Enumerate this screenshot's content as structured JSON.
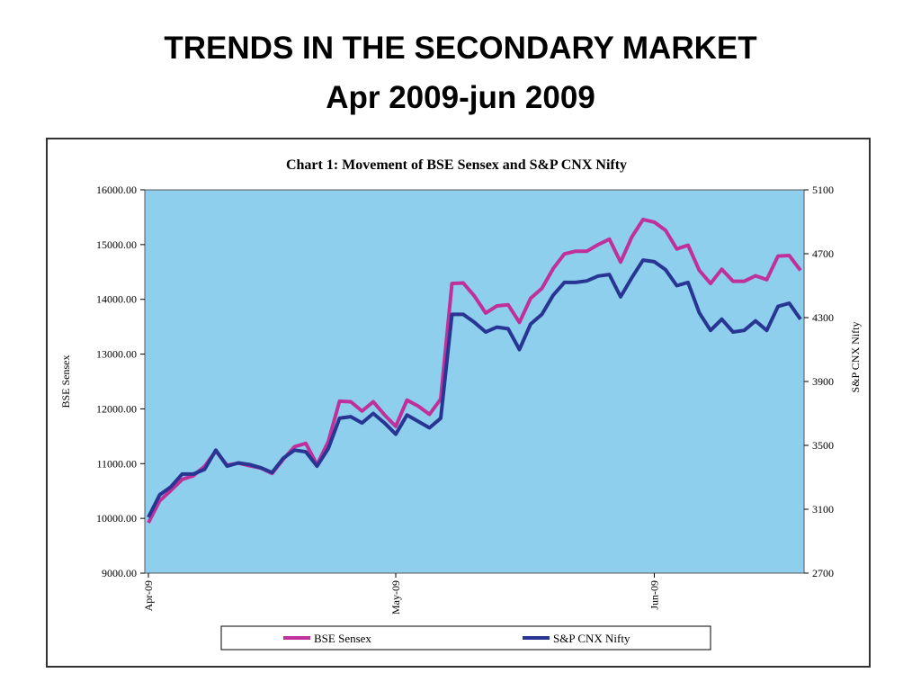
{
  "slide": {
    "title_line1": "TRENDS IN THE SECONDARY MARKET",
    "title_line2": "Apr 2009-jun 2009"
  },
  "chart_data": {
    "type": "line",
    "title": "Chart 1: Movement of BSE Sensex and S&P CNX Nifty",
    "ylabel": "BSE Sensex",
    "y2label": "S&P CNX Nifty",
    "ylim": [
      9000,
      16000
    ],
    "y2lim": [
      2700,
      5100
    ],
    "yticks": [
      "16000.00",
      "15000.00",
      "14000.00",
      "13000.00",
      "12000.00",
      "11000.00",
      "10000.00",
      "9000.00"
    ],
    "y2ticks": [
      "5100",
      "4700",
      "4300",
      "3900",
      "3500",
      "3100",
      "2700"
    ],
    "xticks": [
      "Apr-09",
      "May-09",
      "Jun-09"
    ],
    "legend_position": "bottom",
    "plot_background": "#8ecfee",
    "series": [
      {
        "name": "BSE Sensex",
        "axis": "left",
        "color": "#c0309a",
        "values": [
          9920,
          10320,
          10510,
          10710,
          10780,
          10950,
          11230,
          10970,
          11010,
          10960,
          10920,
          10820,
          11080,
          11310,
          11370,
          10980,
          11400,
          12140,
          12130,
          11960,
          12130,
          11890,
          11680,
          12160,
          12050,
          11900,
          12180,
          14290,
          14300,
          14060,
          13750,
          13880,
          13900,
          13580,
          14020,
          14200,
          14560,
          14830,
          14880,
          14880,
          15000,
          15100,
          14680,
          15140,
          15460,
          15410,
          15260,
          14920,
          14990,
          14530,
          14290,
          14550,
          14330,
          14330,
          14430,
          14360,
          14790,
          14800,
          14530
        ]
      },
      {
        "name": "S&P CNX Nifty",
        "axis": "right",
        "color": "#283593",
        "values": [
          3050,
          3190,
          3240,
          3320,
          3320,
          3350,
          3470,
          3370,
          3390,
          3380,
          3360,
          3330,
          3420,
          3470,
          3460,
          3370,
          3480,
          3670,
          3680,
          3640,
          3700,
          3640,
          3570,
          3690,
          3650,
          3610,
          3670,
          4320,
          4320,
          4270,
          4210,
          4240,
          4230,
          4100,
          4260,
          4320,
          4440,
          4520,
          4520,
          4530,
          4560,
          4570,
          4430,
          4550,
          4660,
          4650,
          4600,
          4500,
          4520,
          4330,
          4220,
          4290,
          4210,
          4220,
          4280,
          4220,
          4370,
          4390,
          4290
        ]
      }
    ]
  }
}
